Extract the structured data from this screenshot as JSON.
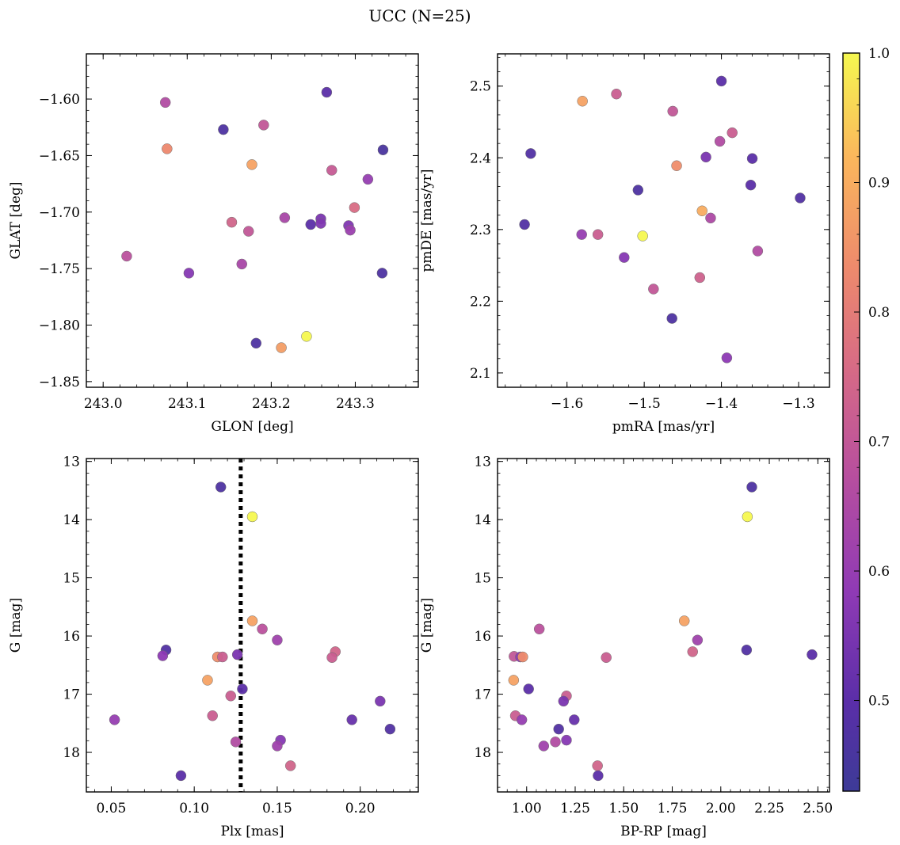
{
  "title": "UCC (N=25)",
  "colorbar": {
    "range": [
      0.43,
      1.0
    ],
    "ticks": [
      "0.5",
      "0.6",
      "0.7",
      "0.8",
      "0.9",
      "1.0"
    ],
    "colormap": "plasma"
  },
  "chart_data": [
    {
      "type": "scatter",
      "panel": "top-left",
      "xlabel": "GLON [deg]",
      "ylabel": "GLAT [deg]",
      "xlim": [
        242.98,
        243.375
      ],
      "ylim": [
        -1.855,
        -1.56
      ],
      "xticks": [
        "243.0",
        "243.1",
        "243.2",
        "243.3"
      ],
      "yticks": [
        "-1.60",
        "-1.65",
        "-1.70",
        "-1.75",
        "-1.80",
        "-1.85"
      ],
      "invert_y": false,
      "points": [
        {
          "x": 243.074,
          "y": -1.603,
          "c": 0.66
        },
        {
          "x": 243.076,
          "y": -1.644,
          "c": 0.83
        },
        {
          "x": 243.143,
          "y": -1.627,
          "c": 0.47
        },
        {
          "x": 243.191,
          "y": -1.623,
          "c": 0.7
        },
        {
          "x": 243.266,
          "y": -1.594,
          "c": 0.5
        },
        {
          "x": 243.177,
          "y": -1.658,
          "c": 0.88
        },
        {
          "x": 243.272,
          "y": -1.663,
          "c": 0.71
        },
        {
          "x": 243.333,
          "y": -1.645,
          "c": 0.46
        },
        {
          "x": 243.315,
          "y": -1.671,
          "c": 0.6
        },
        {
          "x": 243.299,
          "y": -1.696,
          "c": 0.76
        },
        {
          "x": 243.216,
          "y": -1.705,
          "c": 0.64
        },
        {
          "x": 243.259,
          "y": -1.706,
          "c": 0.55
        },
        {
          "x": 243.247,
          "y": -1.711,
          "c": 0.5
        },
        {
          "x": 243.259,
          "y": -1.71,
          "c": 0.56
        },
        {
          "x": 243.292,
          "y": -1.712,
          "c": 0.56
        },
        {
          "x": 243.294,
          "y": -1.716,
          "c": 0.61
        },
        {
          "x": 243.153,
          "y": -1.709,
          "c": 0.74
        },
        {
          "x": 243.173,
          "y": -1.717,
          "c": 0.7
        },
        {
          "x": 243.028,
          "y": -1.739,
          "c": 0.68
        },
        {
          "x": 243.102,
          "y": -1.754,
          "c": 0.57
        },
        {
          "x": 243.165,
          "y": -1.746,
          "c": 0.64
        },
        {
          "x": 243.332,
          "y": -1.754,
          "c": 0.47
        },
        {
          "x": 243.182,
          "y": -1.816,
          "c": 0.47
        },
        {
          "x": 243.212,
          "y": -1.82,
          "c": 0.87
        },
        {
          "x": 243.242,
          "y": -1.81,
          "c": 1.0
        }
      ]
    },
    {
      "type": "scatter",
      "panel": "top-right",
      "xlabel": "pmRA [mas/yr]",
      "ylabel": "pmDE [mas/yr]",
      "xlim": [
        -1.69,
        -1.26
      ],
      "ylim": [
        2.08,
        2.545
      ],
      "xticks": [
        "-1.6",
        "-1.5",
        "-1.4",
        "-1.3"
      ],
      "yticks": [
        "2.1",
        "2.2",
        "2.3",
        "2.4",
        "2.5"
      ],
      "invert_y": false,
      "points": [
        {
          "x": -1.58,
          "y": 2.479,
          "c": 0.88
        },
        {
          "x": -1.536,
          "y": 2.489,
          "c": 0.72
        },
        {
          "x": -1.463,
          "y": 2.465,
          "c": 0.7
        },
        {
          "x": -1.4,
          "y": 2.507,
          "c": 0.5
        },
        {
          "x": -1.647,
          "y": 2.406,
          "c": 0.48
        },
        {
          "x": -1.458,
          "y": 2.389,
          "c": 0.84
        },
        {
          "x": -1.42,
          "y": 2.401,
          "c": 0.55
        },
        {
          "x": -1.402,
          "y": 2.423,
          "c": 0.66
        },
        {
          "x": -1.386,
          "y": 2.435,
          "c": 0.72
        },
        {
          "x": -1.36,
          "y": 2.399,
          "c": 0.5
        },
        {
          "x": -1.362,
          "y": 2.362,
          "c": 0.5
        },
        {
          "x": -1.298,
          "y": 2.344,
          "c": 0.48
        },
        {
          "x": -1.508,
          "y": 2.355,
          "c": 0.47
        },
        {
          "x": -1.425,
          "y": 2.326,
          "c": 0.9
        },
        {
          "x": -1.414,
          "y": 2.316,
          "c": 0.65
        },
        {
          "x": -1.655,
          "y": 2.307,
          "c": 0.48
        },
        {
          "x": -1.581,
          "y": 2.293,
          "c": 0.6
        },
        {
          "x": -1.56,
          "y": 2.293,
          "c": 0.72
        },
        {
          "x": -1.502,
          "y": 2.291,
          "c": 1.0
        },
        {
          "x": -1.526,
          "y": 2.261,
          "c": 0.57
        },
        {
          "x": -1.353,
          "y": 2.27,
          "c": 0.66
        },
        {
          "x": -1.488,
          "y": 2.217,
          "c": 0.7
        },
        {
          "x": -1.428,
          "y": 2.233,
          "c": 0.73
        },
        {
          "x": -1.464,
          "y": 2.176,
          "c": 0.47
        },
        {
          "x": -1.393,
          "y": 2.121,
          "c": 0.58
        }
      ]
    },
    {
      "type": "scatter",
      "panel": "bottom-left",
      "xlabel": "Plx [mas]",
      "ylabel": "G [mag]",
      "xlim": [
        0.035,
        0.235
      ],
      "ylim": [
        18.68,
        12.95
      ],
      "xticks": [
        "0.05",
        "0.10",
        "0.15",
        "0.20"
      ],
      "yticks": [
        "13",
        "14",
        "15",
        "16",
        "17",
        "18"
      ],
      "invert_y": true,
      "vline": 0.128,
      "points": [
        {
          "x": 0.116,
          "y": 13.44,
          "c": 0.47
        },
        {
          "x": 0.135,
          "y": 13.95,
          "c": 1.0
        },
        {
          "x": 0.135,
          "y": 15.74,
          "c": 0.88
        },
        {
          "x": 0.141,
          "y": 15.88,
          "c": 0.68
        },
        {
          "x": 0.15,
          "y": 16.07,
          "c": 0.62
        },
        {
          "x": 0.083,
          "y": 16.24,
          "c": 0.48
        },
        {
          "x": 0.081,
          "y": 16.34,
          "c": 0.58
        },
        {
          "x": 0.114,
          "y": 16.36,
          "c": 0.84
        },
        {
          "x": 0.117,
          "y": 16.36,
          "c": 0.72
        },
        {
          "x": 0.126,
          "y": 16.32,
          "c": 0.55
        },
        {
          "x": 0.185,
          "y": 16.27,
          "c": 0.74
        },
        {
          "x": 0.183,
          "y": 16.37,
          "c": 0.72
        },
        {
          "x": 0.108,
          "y": 16.76,
          "c": 0.88
        },
        {
          "x": 0.129,
          "y": 16.91,
          "c": 0.5
        },
        {
          "x": 0.122,
          "y": 17.03,
          "c": 0.72
        },
        {
          "x": 0.212,
          "y": 17.12,
          "c": 0.55
        },
        {
          "x": 0.111,
          "y": 17.37,
          "c": 0.72
        },
        {
          "x": 0.052,
          "y": 17.44,
          "c": 0.6
        },
        {
          "x": 0.195,
          "y": 17.44,
          "c": 0.52
        },
        {
          "x": 0.218,
          "y": 17.6,
          "c": 0.48
        },
        {
          "x": 0.125,
          "y": 17.82,
          "c": 0.66
        },
        {
          "x": 0.152,
          "y": 17.79,
          "c": 0.57
        },
        {
          "x": 0.15,
          "y": 17.89,
          "c": 0.62
        },
        {
          "x": 0.158,
          "y": 18.23,
          "c": 0.74
        },
        {
          "x": 0.092,
          "y": 18.4,
          "c": 0.5
        }
      ]
    },
    {
      "type": "scatter",
      "panel": "bottom-right",
      "xlabel": "BP-RP [mag]",
      "ylabel": "G [mag]",
      "xlim": [
        0.85,
        2.56
      ],
      "ylim": [
        18.68,
        12.95
      ],
      "xticks": [
        "1.00",
        "1.25",
        "1.50",
        "1.75",
        "2.00",
        "2.25",
        "2.50"
      ],
      "yticks": [
        "13",
        "14",
        "15",
        "16",
        "17",
        "18"
      ],
      "invert_y": true,
      "points": [
        {
          "x": 2.16,
          "y": 13.44,
          "c": 0.47
        },
        {
          "x": 2.137,
          "y": 13.95,
          "c": 1.0
        },
        {
          "x": 1.812,
          "y": 15.74,
          "c": 0.88
        },
        {
          "x": 1.065,
          "y": 15.88,
          "c": 0.68
        },
        {
          "x": 1.88,
          "y": 16.07,
          "c": 0.62
        },
        {
          "x": 2.133,
          "y": 16.24,
          "c": 0.48
        },
        {
          "x": 2.47,
          "y": 16.32,
          "c": 0.5
        },
        {
          "x": 1.855,
          "y": 16.27,
          "c": 0.74
        },
        {
          "x": 1.41,
          "y": 16.37,
          "c": 0.72
        },
        {
          "x": 0.935,
          "y": 16.35,
          "c": 0.7
        },
        {
          "x": 0.968,
          "y": 16.36,
          "c": 0.58
        },
        {
          "x": 0.98,
          "y": 16.36,
          "c": 0.84
        },
        {
          "x": 0.933,
          "y": 16.76,
          "c": 0.88
        },
        {
          "x": 1.01,
          "y": 16.91,
          "c": 0.5
        },
        {
          "x": 1.205,
          "y": 17.03,
          "c": 0.72
        },
        {
          "x": 1.19,
          "y": 17.12,
          "c": 0.55
        },
        {
          "x": 0.942,
          "y": 17.37,
          "c": 0.72
        },
        {
          "x": 0.975,
          "y": 17.44,
          "c": 0.6
        },
        {
          "x": 1.245,
          "y": 17.44,
          "c": 0.52
        },
        {
          "x": 1.165,
          "y": 17.6,
          "c": 0.48
        },
        {
          "x": 1.148,
          "y": 17.82,
          "c": 0.66
        },
        {
          "x": 1.205,
          "y": 17.79,
          "c": 0.57
        },
        {
          "x": 1.088,
          "y": 17.89,
          "c": 0.62
        },
        {
          "x": 1.365,
          "y": 18.23,
          "c": 0.74
        },
        {
          "x": 1.368,
          "y": 18.4,
          "c": 0.5
        }
      ]
    }
  ]
}
